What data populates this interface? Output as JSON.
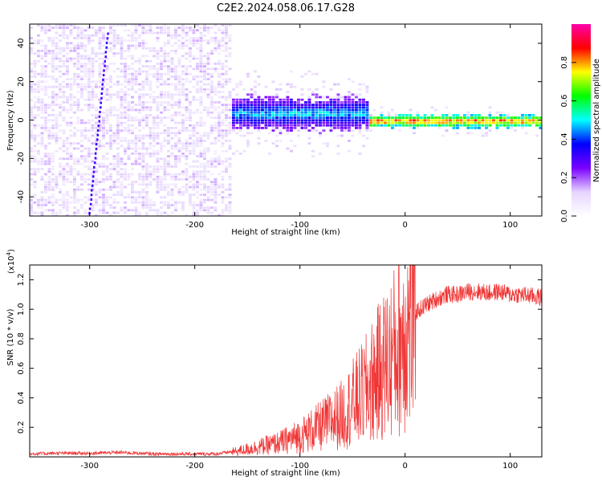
{
  "title": "C2E2.2024.058.06.17.G28",
  "colors": {
    "snr_line": "#ef3434",
    "spectrogram_low": "#7b20f5",
    "colorbar_stops": [
      "#ffffff",
      "#e6d5ff",
      "#7a00ff",
      "#0000ff",
      "#00ffff",
      "#00ff00",
      "#ffff00",
      "#ff0000",
      "#ff00aa"
    ]
  },
  "chart_data": [
    {
      "type": "heatmap",
      "xlabel": "Height of straight line (km)",
      "ylabel": "Frequency (Hz)",
      "xlim": [
        -357,
        130
      ],
      "ylim": [
        -50,
        50
      ],
      "xticks": [
        -300,
        -200,
        -100,
        0,
        100
      ],
      "yticks": [
        -40,
        -20,
        0,
        20,
        40
      ],
      "colorbar": {
        "label": "Normalized spectral amplitude",
        "range": [
          0,
          1
        ],
        "ticks": [
          "0.0",
          "0.2",
          "0.4",
          "0.6",
          "0.8"
        ]
      },
      "features": [
        {
          "x_range": [
            -357,
            -165
          ],
          "freq_range": [
            -50,
            50
          ],
          "amplitude": [
            0.05,
            0.15
          ],
          "form": "broadband noise"
        },
        {
          "x_range": [
            -165,
            -35
          ],
          "center_freq": 4,
          "spread_hz": 8,
          "amplitude": [
            0.2,
            0.55
          ],
          "form": "signal emerging"
        },
        {
          "x_range": [
            -35,
            130
          ],
          "center_freq": 0,
          "spread_hz": 3,
          "amplitude": [
            0.45,
            0.95
          ],
          "form": "narrow carrier"
        }
      ]
    },
    {
      "type": "line",
      "xlabel": "Height of straight line (km)",
      "ylabel": "SNR (10 * v/v)",
      "yscale_label": "(x10",
      "yscale_exp": "4",
      "yscale_close": ")",
      "xlim": [
        -357,
        130
      ],
      "ylim": [
        0,
        1.3
      ],
      "xticks": [
        -300,
        -200,
        -100,
        0,
        100
      ],
      "yticks": [
        "0.2",
        "0.4",
        "0.6",
        "0.8",
        "1.0",
        "1.2"
      ],
      "series": [
        {
          "x": [
            -357,
            -330,
            -300,
            -270,
            -240,
            -210,
            -180,
            -160,
            -140,
            -120,
            -100,
            -80,
            -60,
            -50,
            -40,
            -30,
            -20,
            -10,
            0,
            10,
            20,
            30,
            40,
            50,
            60,
            70,
            80,
            90,
            100,
            110,
            120,
            130
          ],
          "y": [
            0.02,
            0.025,
            0.025,
            0.03,
            0.02,
            0.02,
            0.02,
            0.04,
            0.07,
            0.1,
            0.15,
            0.22,
            0.3,
            0.38,
            0.45,
            0.55,
            0.65,
            0.75,
            0.9,
            0.98,
            1.03,
            1.07,
            1.1,
            1.1,
            1.12,
            1.12,
            1.11,
            1.12,
            1.1,
            1.1,
            1.09,
            1.08
          ]
        }
      ]
    }
  ]
}
